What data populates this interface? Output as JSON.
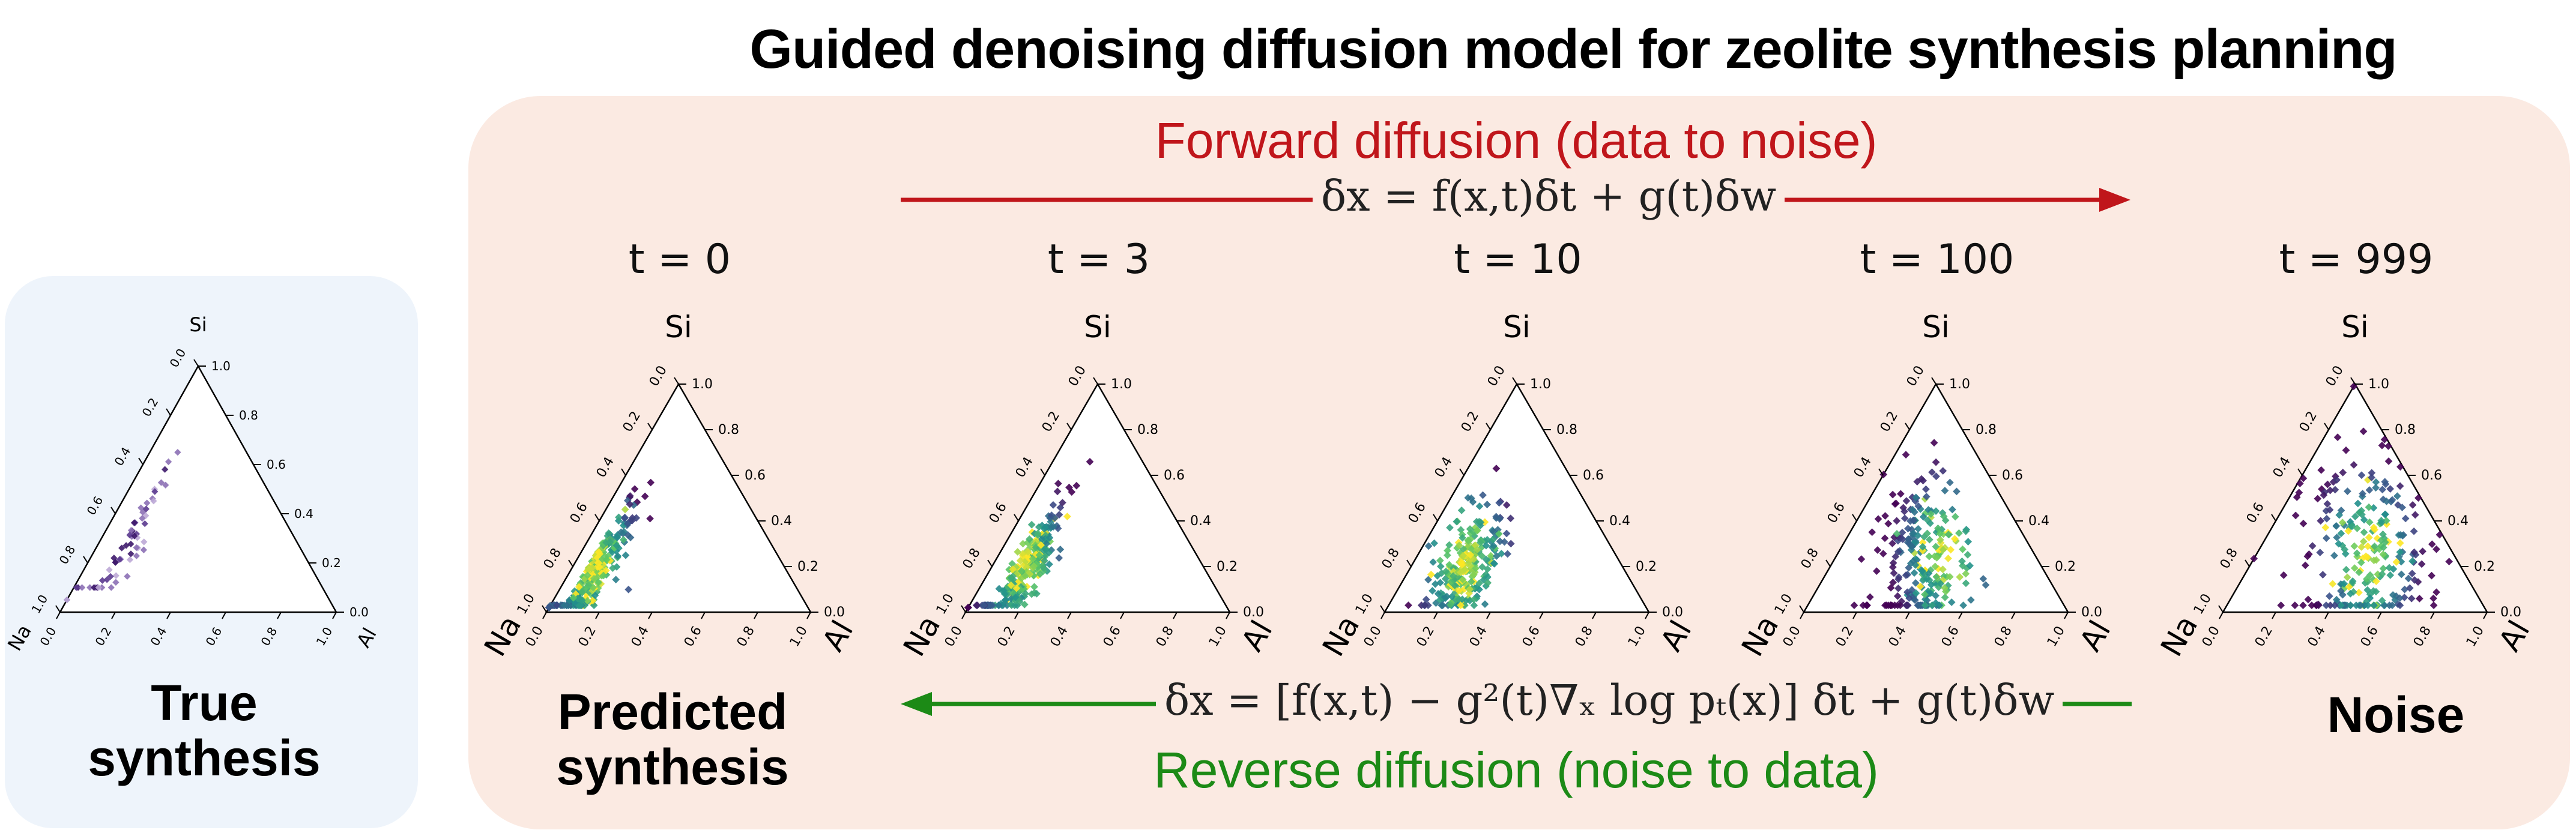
{
  "title": "Guided denoising diffusion model for zeolite synthesis planning",
  "true_panel": {
    "caption_line1": "True",
    "caption_line2": "synthesis"
  },
  "diffusion_panel": {
    "forward_label": "Forward diffusion (data to noise)",
    "forward_equation": "δx = f(x,t)δt + g(t)δw",
    "reverse_label": "Reverse diffusion (noise to data)",
    "reverse_equation": "δx = [f(x,t) − g²(t)∇ₓ log pₜ(x)] δt + g(t)δw",
    "predicted_caption_line1": "Predicted",
    "predicted_caption_line2": "synthesis",
    "noise_caption": "Noise"
  },
  "ternary": {
    "vertex_top": "Si",
    "vertex_left": "Na",
    "vertex_right": "Al",
    "ticks": [
      "0.0",
      "0.2",
      "0.4",
      "0.6",
      "0.8",
      "1.0"
    ]
  },
  "timesteps": [
    {
      "label": "t = 0"
    },
    {
      "label": "t = 3"
    },
    {
      "label": "t = 10"
    },
    {
      "label": "t = 100"
    },
    {
      "label": "t = 999"
    }
  ],
  "colors": {
    "forward_arrow": "#c0161b",
    "reverse_arrow": "#1c8a16",
    "true_panel_bg": "#eef4fb",
    "diffusion_panel_bg": "#fbeae2",
    "colormap": [
      "#440154",
      "#3b528b",
      "#21918c",
      "#5ec962",
      "#fde725"
    ]
  }
}
